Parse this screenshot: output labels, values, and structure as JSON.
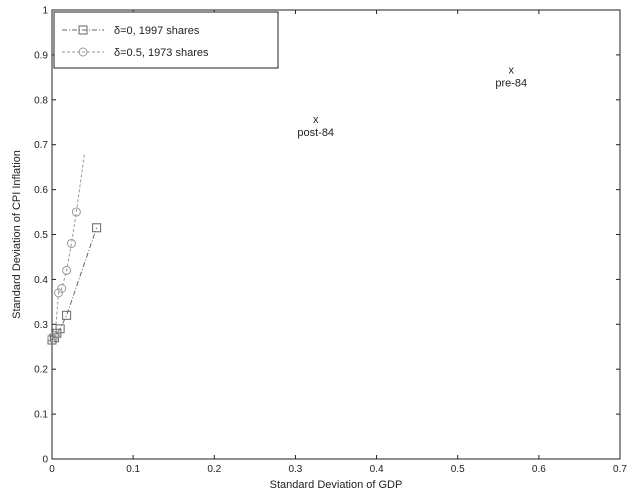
{
  "chart_data": {
    "type": "line",
    "title": "",
    "xlabel": "Standard Deviation of GDP",
    "ylabel": "Standard Deviation of CPI Inflation",
    "xlim": [
      0,
      0.7
    ],
    "ylim": [
      0,
      1
    ],
    "xticks": [
      "0",
      "0.1",
      "0.2",
      "0.3",
      "0.4",
      "0.5",
      "0.6",
      "0.7"
    ],
    "yticks": [
      "0",
      "0.1",
      "0.2",
      "0.3",
      "0.4",
      "0.5",
      "0.6",
      "0.7",
      "0.8",
      "0.9",
      "1"
    ],
    "grid": false,
    "legend_position": "top-left",
    "series": [
      {
        "name": "δ=0, 1997 shares",
        "marker": "square",
        "color": "#666666",
        "x": [
          0.0,
          0.003,
          0.006,
          0.01,
          0.018,
          0.055
        ],
        "y": [
          0.265,
          0.27,
          0.28,
          0.29,
          0.32,
          0.515
        ]
      },
      {
        "name": "δ=0.5, 1973 shares",
        "marker": "circle",
        "color": "#999999",
        "x": [
          0.0,
          0.004,
          0.008,
          0.012,
          0.018,
          0.024,
          0.03,
          0.04
        ],
        "y": [
          0.27,
          0.275,
          0.37,
          0.38,
          0.42,
          0.48,
          0.55,
          0.68
        ]
      }
    ],
    "annotations": [
      {
        "x": 0.325,
        "y": 0.755,
        "label": "post-84",
        "marker": "x"
      },
      {
        "x": 0.566,
        "y": 0.865,
        "label": "pre-84",
        "marker": "x"
      }
    ]
  }
}
